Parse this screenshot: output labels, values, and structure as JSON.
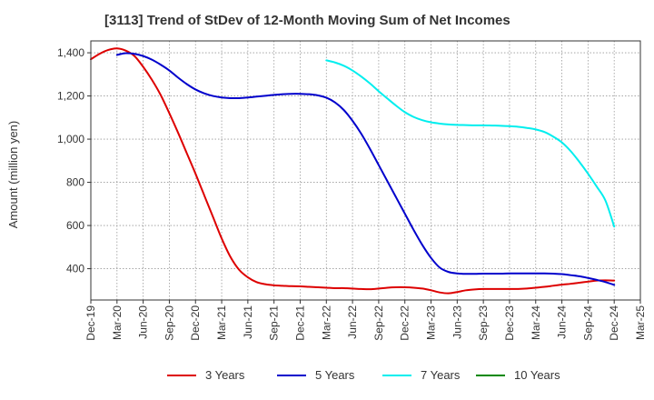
{
  "chart_data": {
    "type": "line",
    "title": "[3113]  Trend of StDev of 12-Month Moving Sum of Net Incomes",
    "xlabel": "",
    "ylabel": "Amount (million yen)",
    "x_tick_labels": [
      "Dec-19",
      "Mar-20",
      "Jun-20",
      "Sep-20",
      "Dec-20",
      "Mar-21",
      "Jun-21",
      "Sep-21",
      "Dec-21",
      "Mar-22",
      "Jun-22",
      "Sep-22",
      "Dec-22",
      "Mar-23",
      "Jun-23",
      "Sep-23",
      "Dec-23",
      "Mar-24",
      "Jun-24",
      "Sep-24",
      "Dec-24",
      "Mar-25"
    ],
    "y_ticks": [
      400,
      600,
      800,
      1000,
      1200,
      1400
    ],
    "y_tick_labels": [
      "400",
      "600",
      "800",
      "1,000",
      "1,200",
      "1,400"
    ],
    "ylim": [
      255,
      1455
    ],
    "grid": true,
    "legend_position": "bottom",
    "series": [
      {
        "name": "3 Years",
        "color": "#dd0000",
        "x": [
          "Dec-19",
          "Jan-20",
          "Feb-20",
          "Mar-20",
          "Apr-20",
          "May-20",
          "Jun-20",
          "Jul-20",
          "Aug-20",
          "Sep-20",
          "Oct-20",
          "Nov-20",
          "Dec-20",
          "Jan-21",
          "Feb-21",
          "Mar-21",
          "Apr-21",
          "May-21",
          "Jun-21",
          "Jul-21",
          "Aug-21",
          "Sep-21",
          "Oct-21",
          "Nov-21",
          "Dec-21",
          "Jan-22",
          "Feb-22",
          "Mar-22",
          "Apr-22",
          "May-22",
          "Jun-22",
          "Jul-22",
          "Aug-22",
          "Sep-22",
          "Oct-22",
          "Nov-22",
          "Dec-22",
          "Jan-23",
          "Feb-23",
          "Mar-23",
          "Apr-23",
          "May-23",
          "Jun-23",
          "Jul-23",
          "Aug-23",
          "Sep-23",
          "Oct-23",
          "Nov-23",
          "Dec-23",
          "Jan-24",
          "Feb-24",
          "Mar-24",
          "Apr-24",
          "May-24",
          "Jun-24",
          "Jul-24",
          "Aug-24",
          "Sep-24",
          "Oct-24",
          "Nov-24",
          "Dec-24"
        ],
        "values": [
          1370,
          1395,
          1413,
          1420,
          1410,
          1385,
          1335,
          1275,
          1205,
          1120,
          1030,
          935,
          840,
          740,
          640,
          540,
          455,
          395,
          360,
          338,
          328,
          323,
          321,
          319,
          318,
          316,
          314,
          312,
          310,
          310,
          308,
          306,
          305,
          308,
          312,
          314,
          314,
          312,
          308,
          300,
          290,
          286,
          292,
          300,
          304,
          306,
          306,
          306,
          306,
          306,
          308,
          312,
          316,
          321,
          326,
          330,
          335,
          340,
          345,
          346,
          345
        ]
      },
      {
        "name": "5 Years",
        "color": "#0000cc",
        "x": [
          "Mar-20",
          "Apr-20",
          "May-20",
          "Jun-20",
          "Jul-20",
          "Aug-20",
          "Sep-20",
          "Oct-20",
          "Nov-20",
          "Dec-20",
          "Jan-21",
          "Feb-21",
          "Mar-21",
          "Apr-21",
          "May-21",
          "Jun-21",
          "Jul-21",
          "Aug-21",
          "Sep-21",
          "Oct-21",
          "Nov-21",
          "Dec-21",
          "Jan-22",
          "Feb-22",
          "Mar-22",
          "Apr-22",
          "May-22",
          "Jun-22",
          "Jul-22",
          "Aug-22",
          "Sep-22",
          "Oct-22",
          "Nov-22",
          "Dec-22",
          "Jan-23",
          "Feb-23",
          "Mar-23",
          "Apr-23",
          "May-23",
          "Jun-23",
          "Jul-23",
          "Aug-23",
          "Sep-23",
          "Oct-23",
          "Nov-23",
          "Dec-23",
          "Jan-24",
          "Feb-24",
          "Mar-24",
          "Apr-24",
          "May-24",
          "Jun-24",
          "Jul-24",
          "Aug-24",
          "Sep-24",
          "Oct-24",
          "Nov-24",
          "Dec-24"
        ],
        "values": [
          1390,
          1398,
          1395,
          1385,
          1368,
          1345,
          1318,
          1285,
          1255,
          1230,
          1212,
          1200,
          1193,
          1190,
          1190,
          1193,
          1197,
          1201,
          1205,
          1208,
          1210,
          1210,
          1208,
          1203,
          1192,
          1170,
          1135,
          1085,
          1025,
          955,
          880,
          805,
          730,
          655,
          580,
          510,
          450,
          405,
          385,
          378,
          376,
          376,
          377,
          377,
          377,
          378,
          378,
          378,
          378,
          378,
          377,
          375,
          370,
          365,
          357,
          348,
          338,
          325
        ]
      },
      {
        "name": "7 Years",
        "color": "#00eeee",
        "x": [
          "Mar-22",
          "Apr-22",
          "May-22",
          "Jun-22",
          "Jul-22",
          "Aug-22",
          "Sep-22",
          "Oct-22",
          "Nov-22",
          "Dec-22",
          "Jan-23",
          "Feb-23",
          "Mar-23",
          "Apr-23",
          "May-23",
          "Jun-23",
          "Jul-23",
          "Aug-23",
          "Sep-23",
          "Oct-23",
          "Nov-23",
          "Dec-23",
          "Jan-24",
          "Feb-24",
          "Mar-24",
          "Apr-24",
          "May-24",
          "Jun-24",
          "Jul-24",
          "Aug-24",
          "Sep-24",
          "Oct-24",
          "Nov-24",
          "Dec-24"
        ],
        "values": [
          1365,
          1355,
          1340,
          1318,
          1290,
          1258,
          1222,
          1188,
          1155,
          1125,
          1103,
          1088,
          1078,
          1072,
          1068,
          1066,
          1065,
          1064,
          1064,
          1063,
          1062,
          1060,
          1057,
          1052,
          1045,
          1033,
          1012,
          985,
          945,
          895,
          840,
          780,
          715,
          595
        ]
      },
      {
        "name": "10 Years",
        "color": "#008800",
        "x": [],
        "values": []
      }
    ]
  }
}
